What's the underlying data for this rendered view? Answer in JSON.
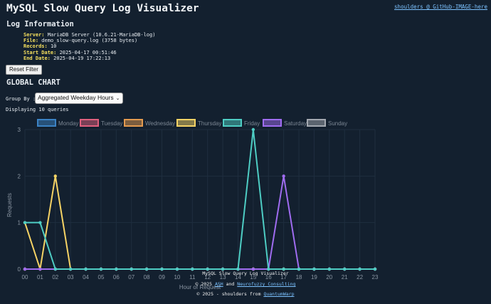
{
  "header": {
    "title": "MySQL Slow Query Log Visualizer",
    "link_text": "shoulders @ GitHub-IMAGE-here"
  },
  "log_info": {
    "heading": "Log Information",
    "rows": [
      {
        "label": "Server:",
        "value": "MariaDB Server (10.6.21-MariaDB-log)"
      },
      {
        "label": "File:",
        "value": "demo_slow-query.log (3758 bytes)"
      },
      {
        "label": "Records:",
        "value": "10"
      },
      {
        "label": "Start Date:",
        "value": "2025-04-17 00:51:46"
      },
      {
        "label": "End Date:",
        "value": "2025-04-19 17:22:13"
      }
    ]
  },
  "controls": {
    "reset_label": "Reset Filter",
    "section_title": "GLOBAL CHART",
    "group_by_label": "Group By :",
    "group_by_selected": "Aggregated Weekday Hours",
    "displaying_text": "Displaying 10 queries"
  },
  "chart_data": {
    "type": "line",
    "xlabel": "Hour of Request",
    "ylabel": "Requests",
    "categories": [
      "00",
      "01",
      "02",
      "03",
      "04",
      "05",
      "06",
      "07",
      "08",
      "09",
      "10",
      "11",
      "12",
      "13",
      "14",
      "15",
      "16",
      "17",
      "18",
      "19",
      "20",
      "21",
      "22",
      "23"
    ],
    "ylim": [
      0,
      3
    ],
    "yticks": [
      "0",
      "1",
      "2",
      "3"
    ],
    "grid": true,
    "legend_position": "top",
    "series": [
      {
        "name": "Monday",
        "color": "#3b82c4",
        "values": [
          0,
          0,
          0,
          0,
          0,
          0,
          0,
          0,
          0,
          0,
          0,
          0,
          0,
          0,
          0,
          0,
          0,
          0,
          0,
          0,
          0,
          0,
          0,
          0
        ]
      },
      {
        "name": "Tuesday",
        "color": "#e0607e",
        "values": [
          0,
          0,
          0,
          0,
          0,
          0,
          0,
          0,
          0,
          0,
          0,
          0,
          0,
          0,
          0,
          0,
          0,
          0,
          0,
          0,
          0,
          0,
          0,
          0
        ]
      },
      {
        "name": "Wednesday",
        "color": "#e39a4f",
        "values": [
          0,
          0,
          0,
          0,
          0,
          0,
          0,
          0,
          0,
          0,
          0,
          0,
          0,
          0,
          0,
          0,
          0,
          0,
          0,
          0,
          0,
          0,
          0,
          0
        ]
      },
      {
        "name": "Thursday",
        "color": "#f6d365",
        "values": [
          1,
          0,
          2,
          0,
          0,
          0,
          0,
          0,
          0,
          0,
          0,
          0,
          0,
          0,
          0,
          0,
          0,
          0,
          0,
          0,
          0,
          0,
          0,
          0
        ]
      },
      {
        "name": "Friday",
        "color": "#4ecdc4",
        "values": [
          1,
          1,
          0,
          0,
          0,
          0,
          0,
          0,
          0,
          0,
          0,
          0,
          0,
          0,
          0,
          3,
          0,
          0,
          0,
          0,
          0,
          0,
          0,
          0
        ]
      },
      {
        "name": "Saturday",
        "color": "#9f6cf0",
        "values": [
          0,
          0,
          0,
          0,
          0,
          0,
          0,
          0,
          0,
          0,
          0,
          0,
          0,
          0,
          0,
          0,
          0,
          2,
          0,
          0,
          0,
          0,
          0,
          0
        ]
      },
      {
        "name": "Sunday",
        "color": "#a3a8b0",
        "values": [
          0,
          0,
          0,
          0,
          0,
          0,
          0,
          0,
          0,
          0,
          0,
          0,
          0,
          0,
          0,
          0,
          0,
          0,
          0,
          0,
          0,
          0,
          0,
          0
        ]
      }
    ]
  },
  "footer": {
    "line1": "MySQL Slow Query Log Visualizer",
    "line2_prefix": "© 2025",
    "line2_link1": "ASH",
    "line2_mid": "and",
    "line2_link2": "Neurofuzzy Consulting",
    "line3_prefix": "© 2025 - shoulders from",
    "line3_link": "QuantumWarp"
  }
}
